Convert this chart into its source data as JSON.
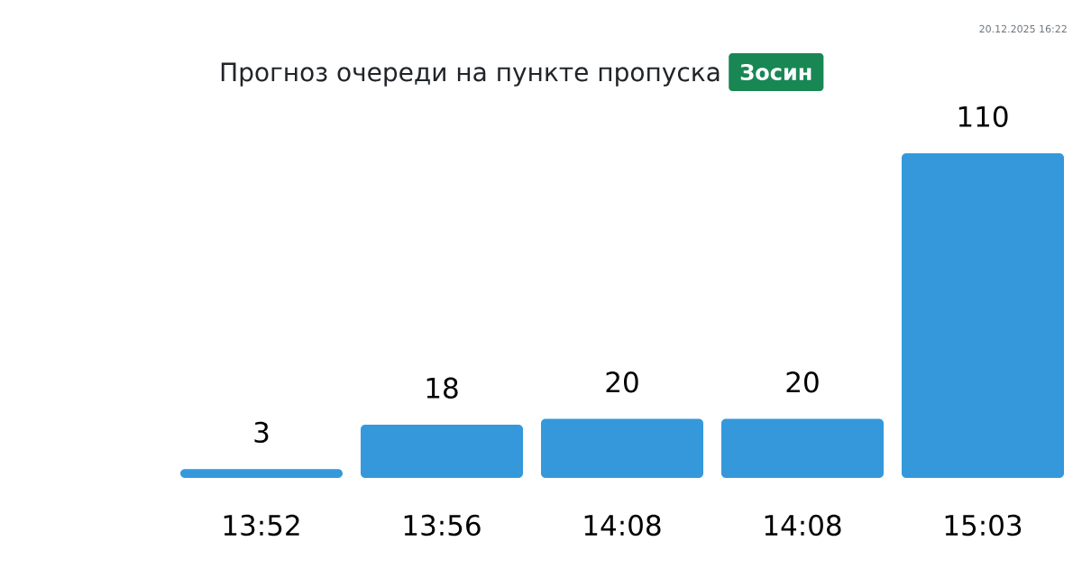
{
  "chart_data": {
    "type": "bar",
    "title": "Прогноз очереди на пункте пропуска",
    "subtitle": "Зосин",
    "categories": [
      "13:52",
      "13:56",
      "14:08",
      "14:08",
      "15:03"
    ],
    "values": [
      3,
      18,
      20,
      20,
      110
    ],
    "color": "#3498db",
    "data_labels": true,
    "annotations": [
      "20.12.2025 16:22"
    ]
  }
}
